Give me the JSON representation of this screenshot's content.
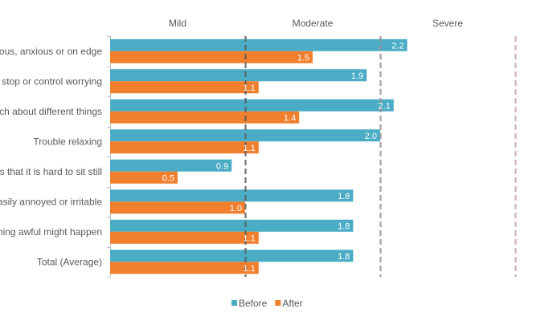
{
  "chart_data": {
    "type": "bar",
    "orientation": "horizontal",
    "categories": [
      "Feeling nervous, anxious or on edge",
      "Not being able to stop or control worrying",
      "Worrying too much about different things",
      "Trouble relaxing",
      "Being so restless that it is hard to sit still",
      "Becoming easily annoyed or irritable",
      "Feeling afraid as if something awful might happen",
      "Total (Average)"
    ],
    "series": [
      {
        "name": "Before",
        "values": [
          2.2,
          1.9,
          2.1,
          2.0,
          0.9,
          1.8,
          1.8,
          1.8
        ],
        "labels": [
          "2.2",
          "1.9",
          "2.1",
          "2.0",
          "0.9",
          "1.8",
          "1.8",
          "1.8"
        ]
      },
      {
        "name": "After",
        "values": [
          1.5,
          1.1,
          1.4,
          1.1,
          0.5,
          1.0,
          1.1,
          1.1
        ],
        "labels": [
          "1.5",
          "1.1",
          "1.4",
          "1.1",
          "0.5",
          "1.0",
          "1.1",
          "1.1"
        ]
      }
    ],
    "severity_bands": [
      {
        "label": "Mild",
        "start": 0,
        "end": 1
      },
      {
        "label": "Moderate",
        "start": 1,
        "end": 2
      },
      {
        "label": "Severe",
        "start": 2,
        "end": 3
      }
    ],
    "thresholds": [
      1,
      2,
      3
    ],
    "xlim": [
      0,
      3
    ],
    "title": "",
    "xlabel": "",
    "ylabel": "",
    "legend_position": "bottom",
    "colors": {
      "Before": "#4bacc6",
      "After": "#f07f2e",
      "threshold_1": "#595959",
      "threshold_2": "#9e8a90",
      "threshold_3": "#c4a4ac"
    }
  }
}
